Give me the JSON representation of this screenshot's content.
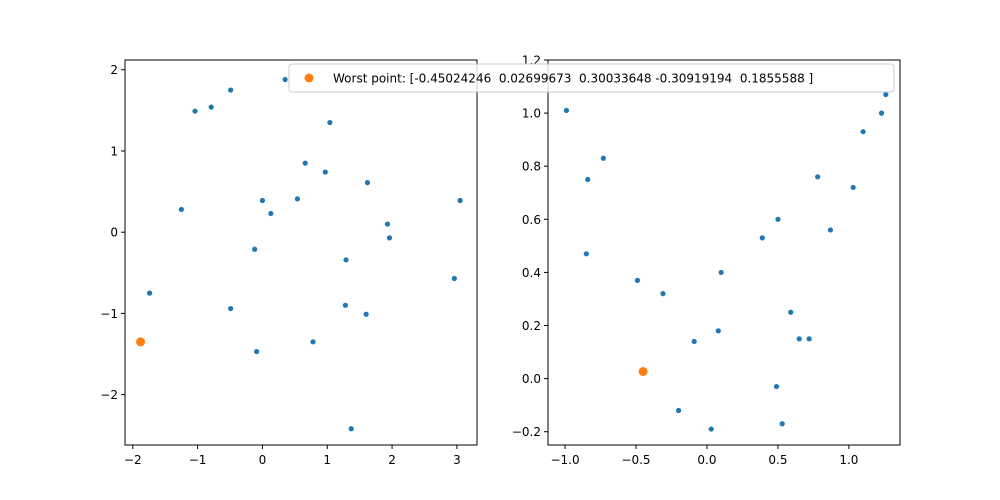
{
  "chart_data": [
    {
      "type": "scatter",
      "title": "",
      "xlabel": "",
      "ylabel": "",
      "xlim": [
        -2.12,
        3.31
      ],
      "ylim": [
        -2.62,
        2.12
      ],
      "xticks": [
        -2,
        -1,
        0,
        1,
        2,
        3
      ],
      "yticks": [
        -2,
        -1,
        0,
        1,
        2
      ],
      "xtick_labels": [
        "−2",
        "−1",
        "0",
        "1",
        "2",
        "3"
      ],
      "ytick_labels": [
        "−2",
        "−1",
        "0",
        "1",
        "2"
      ],
      "series": [
        {
          "color": "#1f77b4",
          "points": [
            [
              -1.04,
              1.49
            ],
            [
              -0.79,
              1.54
            ],
            [
              -0.49,
              1.75
            ],
            [
              0.35,
              1.88
            ],
            [
              1.04,
              1.35
            ],
            [
              0.66,
              0.85
            ],
            [
              0.97,
              0.74
            ],
            [
              1.62,
              0.61
            ],
            [
              0.0,
              0.39
            ],
            [
              0.13,
              0.23
            ],
            [
              0.54,
              0.41
            ],
            [
              -1.25,
              0.28
            ],
            [
              1.93,
              0.1
            ],
            [
              1.96,
              -0.07
            ],
            [
              3.05,
              0.39
            ],
            [
              -0.12,
              -0.21
            ],
            [
              1.29,
              -0.34
            ],
            [
              2.96,
              -0.57
            ],
            [
              -1.74,
              -0.75
            ],
            [
              -0.49,
              -0.94
            ],
            [
              1.28,
              -0.9
            ],
            [
              1.6,
              -1.01
            ],
            [
              0.78,
              -1.35
            ],
            [
              -0.09,
              -1.47
            ],
            [
              1.37,
              -2.42
            ]
          ]
        },
        {
          "color": "#ff7f0e",
          "points": [
            [
              -1.88,
              -1.35
            ]
          ]
        }
      ]
    },
    {
      "type": "scatter",
      "title": "",
      "xlabel": "",
      "ylabel": "",
      "xlim": [
        -1.12,
        1.36
      ],
      "ylim": [
        -0.25,
        1.2
      ],
      "xticks": [
        -1.0,
        -0.5,
        0.0,
        0.5,
        1.0
      ],
      "yticks": [
        -0.2,
        0.0,
        0.2,
        0.4,
        0.6,
        0.8,
        1.0
      ],
      "xtick_labels": [
        "−1.0",
        "−0.5",
        "0.0",
        "0.5",
        "1.0"
      ],
      "ytick_labels": [
        "−0.2",
        "0.0",
        "0.2",
        "0.4",
        "0.6",
        "0.8",
        "1.0"
      ],
      "series": [
        {
          "color": "#1f77b4",
          "points": [
            [
              -0.99,
              1.01
            ],
            [
              -0.73,
              0.83
            ],
            [
              -0.84,
              0.75
            ],
            [
              -0.85,
              0.47
            ],
            [
              -0.49,
              0.37
            ],
            [
              -0.31,
              0.32
            ],
            [
              0.1,
              0.4
            ],
            [
              -0.09,
              0.14
            ],
            [
              0.08,
              0.18
            ],
            [
              -0.2,
              -0.12
            ],
            [
              0.03,
              -0.19
            ],
            [
              0.53,
              -0.17
            ],
            [
              0.49,
              -0.03
            ],
            [
              0.39,
              0.53
            ],
            [
              0.5,
              0.6
            ],
            [
              0.59,
              0.25
            ],
            [
              0.65,
              0.15
            ],
            [
              0.72,
              0.15
            ],
            [
              0.78,
              0.76
            ],
            [
              0.87,
              0.56
            ],
            [
              1.03,
              0.72
            ],
            [
              1.1,
              0.93
            ],
            [
              1.23,
              1.0
            ],
            [
              1.26,
              1.07
            ]
          ]
        },
        {
          "color": "#ff7f0e",
          "points": [
            [
              -0.45,
              0.027
            ]
          ]
        }
      ],
      "partial_tick_label": "1.2",
      "legend": {
        "placement": "top",
        "label": "Worst point: [-0.45024246  0.02699673  0.30033648 -0.30919194  0.1855588 ]",
        "color": "#ff7f0e"
      }
    }
  ]
}
